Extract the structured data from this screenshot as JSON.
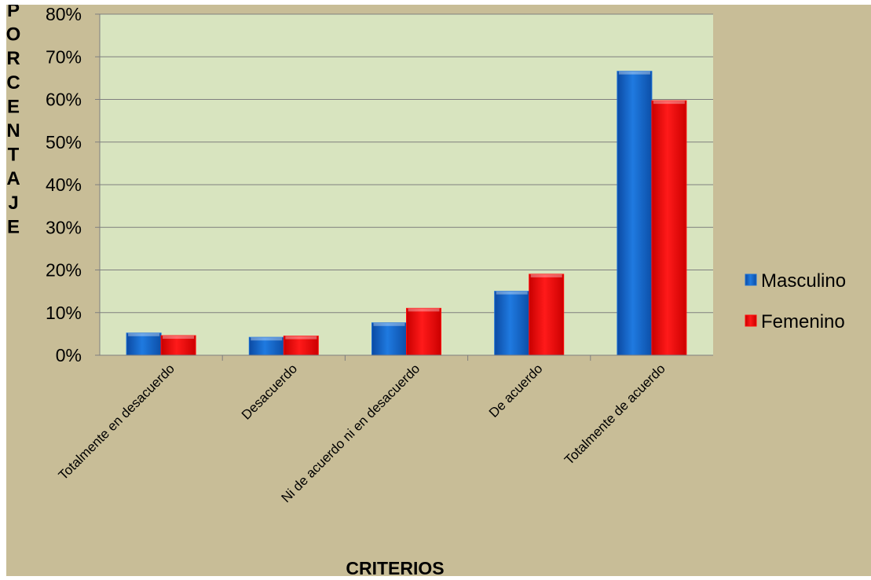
{
  "chart_data": {
    "type": "bar",
    "xlabel": "CRITERIOS",
    "ylabel": "PORCENTAJE",
    "categories": [
      "Totalmente en desacuerdo",
      "Desacuerdo",
      "Ni de acuerdo ni en desacuerdo",
      "De acuerdo",
      "Totalmente de acuerdo"
    ],
    "series": [
      {
        "name": "Masculino",
        "values": [
          5.2,
          4.2,
          7.6,
          15.0,
          66.6
        ],
        "color": "#1a6fd6"
      },
      {
        "name": "Femenino",
        "values": [
          4.6,
          4.5,
          11.0,
          19.0,
          59.7
        ],
        "color": "#ff0a0a"
      }
    ],
    "ylim": [
      0,
      80
    ],
    "yticks": [
      "0%",
      "10%",
      "20%",
      "30%",
      "40%",
      "50%",
      "60%",
      "70%",
      "80%"
    ],
    "grid": true,
    "legend_position": "right",
    "colors": {
      "background": "#c8bd97",
      "plot_area": "#d8e4bf",
      "gridline": "#7f7f7f",
      "text": "#000000"
    }
  }
}
